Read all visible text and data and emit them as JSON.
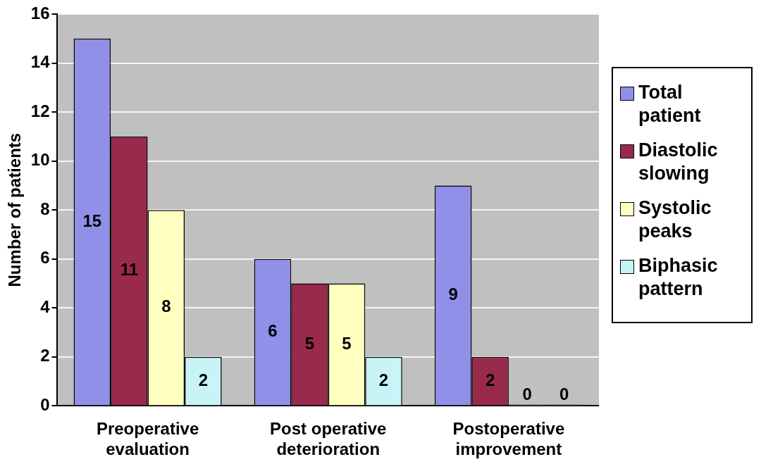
{
  "chart_data": {
    "type": "bar",
    "ylabel": "Number of patients",
    "categories": [
      "Preoperative evaluation",
      "Post operative deterioration",
      "Postoperative improvement"
    ],
    "series": [
      {
        "name": "Total patient",
        "color": "#9090e8",
        "values": [
          15,
          6,
          9
        ]
      },
      {
        "name": "Diastolic slowing",
        "color": "#9a2a4c",
        "values": [
          11,
          5,
          2
        ]
      },
      {
        "name": "Systolic peaks",
        "color": "#ffffc0",
        "values": [
          8,
          5,
          0
        ]
      },
      {
        "name": "Biphasic pattern",
        "color": "#c8f4f8",
        "values": [
          2,
          2,
          0
        ]
      }
    ],
    "ylim": [
      0,
      16
    ],
    "yticks": [
      0,
      2,
      4,
      6,
      8,
      10,
      12,
      14,
      16
    ],
    "grid": "y",
    "legend": "right",
    "data_labels": true
  }
}
